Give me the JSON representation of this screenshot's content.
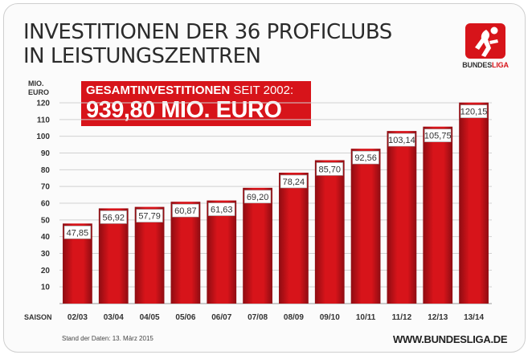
{
  "title": {
    "line1": "INVESTITIONEN DER 36 PROFICLUBS",
    "line2": "IN LEISTUNGSZENTREN"
  },
  "logo": {
    "text_part1": "BUNDES",
    "text_part2": "LIGA",
    "icon": "bundesliga-logo"
  },
  "banner": {
    "label_bold": "GESAMTINVESTITIONEN",
    "label_light": "SEIT 2002:",
    "total": "939,80 MIO. EURO"
  },
  "footer": {
    "note": "Stand der Daten: 13. März 2015",
    "url": "WWW.BUNDESLIGA.DE"
  },
  "colors": {
    "bar": "#d7141a",
    "bar_dark": "#8e0c12",
    "accent": "#d7141a"
  },
  "chart_data": {
    "type": "bar",
    "title": "INVESTITIONEN DER 36 PROFICLUBS IN LEISTUNGSZENTREN",
    "ylabel": "MIO. EURO",
    "xlabel": "SAISON",
    "ylim": [
      0,
      120
    ],
    "yticks": [
      10,
      20,
      30,
      40,
      50,
      60,
      70,
      80,
      90,
      100,
      110,
      120
    ],
    "grid": true,
    "categories": [
      "02/03",
      "03/04",
      "04/05",
      "05/06",
      "06/07",
      "07/08",
      "08/09",
      "09/10",
      "10/11",
      "11/12",
      "12/13",
      "13/14"
    ],
    "values": [
      47.85,
      56.92,
      57.79,
      60.87,
      61.63,
      69.2,
      78.24,
      85.7,
      92.56,
      103.14,
      105.75,
      120.15
    ],
    "value_labels": [
      "47,85",
      "56,92",
      "57,79",
      "60,87",
      "61,63",
      "69,20",
      "78,24",
      "85,70",
      "92,56",
      "103,14",
      "105,75",
      "120,15"
    ]
  }
}
